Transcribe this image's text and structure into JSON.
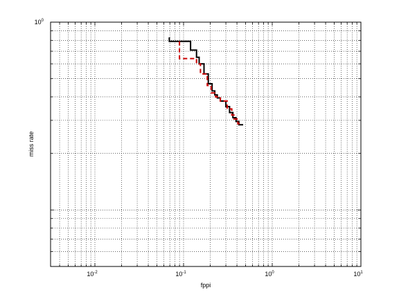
{
  "chart_data": {
    "type": "line",
    "title": "",
    "xlabel": "fppi",
    "ylabel": "miss rate",
    "x_scale": "log",
    "y_scale": "log",
    "xlim": [
      0.0031622776601683794,
      10
    ],
    "ylim": [
      0.05,
      1
    ],
    "grid": true,
    "x_ticks": [
      {
        "value": 0.01,
        "base": "10",
        "exponent": "-2"
      },
      {
        "value": 0.1,
        "base": "10",
        "exponent": "-1"
      },
      {
        "value": 1,
        "base": "10",
        "exponent": "0"
      },
      {
        "value": 10,
        "base": "10",
        "exponent": "1"
      }
    ],
    "y_ticks": [
      {
        "value": 1,
        "base": "10",
        "exponent": "0"
      }
    ],
    "series": [
      {
        "color": "#000000",
        "dash": "solid",
        "points": [
          [
            0.069,
            0.83
          ],
          [
            0.069,
            0.79
          ],
          [
            0.12,
            0.79
          ],
          [
            0.12,
            0.71
          ],
          [
            0.14,
            0.71
          ],
          [
            0.14,
            0.65
          ],
          [
            0.15,
            0.65
          ],
          [
            0.15,
            0.6
          ],
          [
            0.17,
            0.6
          ],
          [
            0.17,
            0.53
          ],
          [
            0.19,
            0.53
          ],
          [
            0.19,
            0.47
          ],
          [
            0.21,
            0.47
          ],
          [
            0.21,
            0.43
          ],
          [
            0.225,
            0.43
          ],
          [
            0.225,
            0.41
          ],
          [
            0.24,
            0.41
          ],
          [
            0.24,
            0.395
          ],
          [
            0.26,
            0.395
          ],
          [
            0.26,
            0.38
          ],
          [
            0.3,
            0.38
          ],
          [
            0.3,
            0.355
          ],
          [
            0.33,
            0.355
          ],
          [
            0.33,
            0.33
          ],
          [
            0.36,
            0.33
          ],
          [
            0.36,
            0.31
          ],
          [
            0.39,
            0.31
          ],
          [
            0.39,
            0.296
          ],
          [
            0.42,
            0.296
          ],
          [
            0.42,
            0.284
          ],
          [
            0.47,
            0.284
          ]
        ]
      },
      {
        "color": "#cc0000",
        "dash": "dashed",
        "points": [
          [
            0.09,
            0.79
          ],
          [
            0.09,
            0.64
          ],
          [
            0.14,
            0.64
          ],
          [
            0.14,
            0.6
          ],
          [
            0.155,
            0.6
          ],
          [
            0.155,
            0.53
          ],
          [
            0.185,
            0.53
          ],
          [
            0.185,
            0.46
          ],
          [
            0.205,
            0.46
          ],
          [
            0.205,
            0.42
          ],
          [
            0.23,
            0.42
          ],
          [
            0.23,
            0.4
          ],
          [
            0.26,
            0.4
          ],
          [
            0.26,
            0.38
          ],
          [
            0.31,
            0.38
          ],
          [
            0.31,
            0.345
          ],
          [
            0.35,
            0.345
          ],
          [
            0.35,
            0.32
          ],
          [
            0.37,
            0.32
          ],
          [
            0.37,
            0.305
          ],
          [
            0.41,
            0.305
          ],
          [
            0.41,
            0.288
          ],
          [
            0.46,
            0.288
          ]
        ]
      }
    ]
  }
}
